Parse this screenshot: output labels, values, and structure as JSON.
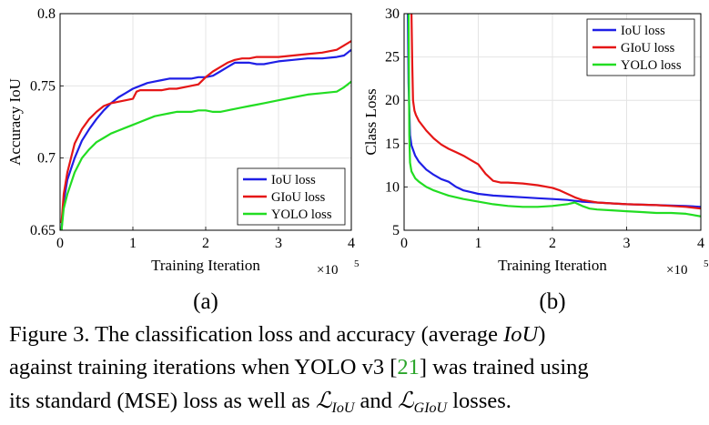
{
  "chart_data": [
    {
      "type": "line",
      "panel_label": "(a)",
      "xlabel": "Training Iteration",
      "ylabel": "Accuracy IoU",
      "x_multiplier": "×10",
      "x_multiplier_exp": "5",
      "xlim": [
        0,
        4
      ],
      "ylim": [
        0.65,
        0.8
      ],
      "xticks": [
        "0",
        "1",
        "2",
        "3",
        "4"
      ],
      "yticks": [
        "0.65",
        "0.7",
        "0.75",
        "0.8"
      ],
      "ytick_values": [
        0.65,
        0.7,
        0.75,
        0.8
      ],
      "grid": true,
      "legend_position": "bottom-right",
      "series": [
        {
          "name": "IoU loss",
          "color": "#1f1fe6",
          "x": [
            0.02,
            0.05,
            0.1,
            0.2,
            0.3,
            0.4,
            0.5,
            0.6,
            0.7,
            0.8,
            0.9,
            1.0,
            1.1,
            1.2,
            1.3,
            1.4,
            1.5,
            1.6,
            1.7,
            1.8,
            1.9,
            2.0,
            2.1,
            2.2,
            2.3,
            2.4,
            2.5,
            2.6,
            2.7,
            2.8,
            2.9,
            3.0,
            3.2,
            3.4,
            3.6,
            3.8,
            3.9,
            4.0
          ],
          "y": [
            0.65,
            0.67,
            0.685,
            0.7,
            0.712,
            0.72,
            0.727,
            0.733,
            0.738,
            0.742,
            0.745,
            0.748,
            0.75,
            0.752,
            0.753,
            0.754,
            0.755,
            0.755,
            0.755,
            0.755,
            0.756,
            0.756,
            0.757,
            0.76,
            0.763,
            0.766,
            0.766,
            0.766,
            0.765,
            0.765,
            0.766,
            0.767,
            0.768,
            0.769,
            0.769,
            0.77,
            0.771,
            0.775
          ]
        },
        {
          "name": "GIoU loss",
          "color": "#e51616",
          "x": [
            0.02,
            0.05,
            0.1,
            0.2,
            0.3,
            0.4,
            0.5,
            0.6,
            0.7,
            0.8,
            0.9,
            1.0,
            1.05,
            1.1,
            1.2,
            1.3,
            1.4,
            1.5,
            1.6,
            1.7,
            1.8,
            1.9,
            2.0,
            2.1,
            2.2,
            2.3,
            2.4,
            2.5,
            2.6,
            2.7,
            2.8,
            2.9,
            3.0,
            3.2,
            3.4,
            3.6,
            3.8,
            3.9,
            4.0
          ],
          "y": [
            0.655,
            0.675,
            0.69,
            0.71,
            0.72,
            0.727,
            0.732,
            0.736,
            0.738,
            0.739,
            0.74,
            0.741,
            0.746,
            0.747,
            0.747,
            0.747,
            0.747,
            0.748,
            0.748,
            0.749,
            0.75,
            0.751,
            0.756,
            0.76,
            0.763,
            0.766,
            0.768,
            0.769,
            0.769,
            0.77,
            0.77,
            0.77,
            0.77,
            0.771,
            0.772,
            0.773,
            0.775,
            0.778,
            0.781
          ]
        },
        {
          "name": "YOLO loss",
          "color": "#22dd22",
          "x": [
            0.02,
            0.05,
            0.1,
            0.2,
            0.3,
            0.4,
            0.5,
            0.6,
            0.7,
            0.8,
            0.9,
            1.0,
            1.1,
            1.2,
            1.3,
            1.4,
            1.5,
            1.6,
            1.7,
            1.8,
            1.9,
            2.0,
            2.1,
            2.2,
            2.3,
            2.4,
            2.5,
            2.6,
            2.7,
            2.8,
            2.9,
            3.0,
            3.2,
            3.4,
            3.6,
            3.8,
            3.9,
            4.0
          ],
          "y": [
            0.65,
            0.665,
            0.675,
            0.69,
            0.7,
            0.706,
            0.711,
            0.714,
            0.717,
            0.719,
            0.721,
            0.723,
            0.725,
            0.727,
            0.729,
            0.73,
            0.731,
            0.732,
            0.732,
            0.732,
            0.733,
            0.733,
            0.732,
            0.732,
            0.733,
            0.734,
            0.735,
            0.736,
            0.737,
            0.738,
            0.739,
            0.74,
            0.742,
            0.744,
            0.745,
            0.746,
            0.749,
            0.753
          ]
        }
      ]
    },
    {
      "type": "line",
      "panel_label": "(b)",
      "xlabel": "Training Iteration",
      "ylabel": "Class Loss",
      "x_multiplier": "×10",
      "x_multiplier_exp": "5",
      "xlim": [
        0,
        4
      ],
      "ylim": [
        5,
        30
      ],
      "xticks": [
        "0",
        "1",
        "2",
        "3",
        "4"
      ],
      "yticks": [
        "5",
        "10",
        "15",
        "20",
        "25",
        "30"
      ],
      "ytick_values": [
        5,
        10,
        15,
        20,
        25,
        30
      ],
      "grid": true,
      "legend_position": "top-right",
      "series": [
        {
          "name": "IoU loss",
          "color": "#1f1fe6",
          "x": [
            0.05,
            0.06,
            0.08,
            0.1,
            0.15,
            0.2,
            0.3,
            0.4,
            0.5,
            0.6,
            0.7,
            0.8,
            0.9,
            1.0,
            1.2,
            1.4,
            1.6,
            1.8,
            2.0,
            2.2,
            2.4,
            2.6,
            2.8,
            3.0,
            3.2,
            3.4,
            3.6,
            3.8,
            4.0
          ],
          "y": [
            30,
            22,
            16,
            14.8,
            13.6,
            12.9,
            12.0,
            11.4,
            10.9,
            10.6,
            10.0,
            9.6,
            9.4,
            9.2,
            9.0,
            8.9,
            8.8,
            8.7,
            8.6,
            8.5,
            8.3,
            8.2,
            8.1,
            8.0,
            7.95,
            7.9,
            7.85,
            7.8,
            7.7
          ]
        },
        {
          "name": "GIoU loss",
          "color": "#e51616",
          "x": [
            0.1,
            0.11,
            0.12,
            0.14,
            0.16,
            0.2,
            0.3,
            0.4,
            0.5,
            0.6,
            0.7,
            0.8,
            0.9,
            1.0,
            1.1,
            1.2,
            1.3,
            1.4,
            1.6,
            1.8,
            2.0,
            2.1,
            2.2,
            2.3,
            2.4,
            2.6,
            2.8,
            3.0,
            3.2,
            3.4,
            3.6,
            3.8,
            4.0
          ],
          "y": [
            30,
            24,
            20,
            18.8,
            18.3,
            17.6,
            16.5,
            15.6,
            14.9,
            14.4,
            14.0,
            13.6,
            13.1,
            12.6,
            11.5,
            10.7,
            10.5,
            10.5,
            10.4,
            10.2,
            9.9,
            9.6,
            9.2,
            8.8,
            8.5,
            8.2,
            8.1,
            8.0,
            7.95,
            7.9,
            7.8,
            7.7,
            7.5
          ]
        },
        {
          "name": "YOLO loss",
          "color": "#22dd22",
          "x": [
            0.06,
            0.07,
            0.08,
            0.1,
            0.15,
            0.2,
            0.3,
            0.4,
            0.5,
            0.6,
            0.8,
            1.0,
            1.2,
            1.4,
            1.6,
            1.8,
            2.0,
            2.2,
            2.3,
            2.4,
            2.5,
            2.6,
            2.8,
            3.0,
            3.2,
            3.4,
            3.6,
            3.8,
            4.0
          ],
          "y": [
            30,
            16,
            12.8,
            11.8,
            11.0,
            10.6,
            10.0,
            9.6,
            9.3,
            9.0,
            8.6,
            8.3,
            8.0,
            7.8,
            7.7,
            7.7,
            7.8,
            8.0,
            8.2,
            7.8,
            7.5,
            7.4,
            7.3,
            7.2,
            7.1,
            7.0,
            7.0,
            6.9,
            6.6
          ]
        }
      ]
    }
  ],
  "caption": {
    "line1_prefix": "Figure 3. The classification loss and accuracy (average ",
    "line1_iou": "IoU",
    "line1_suffix": ")",
    "line2_prefix": "against training iterations when YOLO v3 [",
    "line2_ref": "21",
    "line2_suffix": "] was trained using",
    "line3_prefix": "its standard (MSE) loss as well as ",
    "line3_l": "ℒ",
    "line3_sub1": "IoU",
    "line3_and": " and ",
    "line3_sub2": "GIoU",
    "line3_suffix": " losses."
  }
}
